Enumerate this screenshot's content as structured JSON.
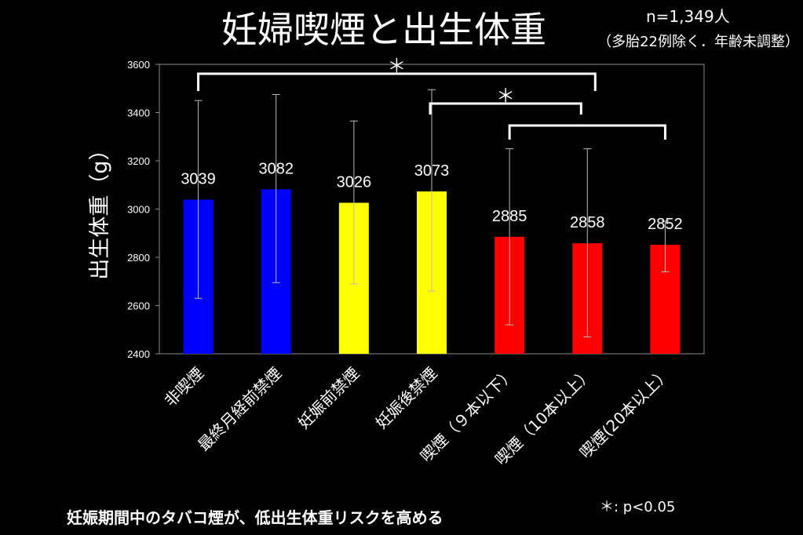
{
  "slide": {
    "title": "妊婦喫煙と出生体重",
    "sample_size": "n=1,349人",
    "note": "（多胎22例除く．年齢未調整）",
    "footer": "妊娠期間中のタバコ煙が、低出生体重リスクを高める",
    "significance_note": "＊: p<0.05"
  },
  "chart_data": {
    "type": "bar",
    "categories": [
      "非喫煙",
      "最終月経前禁煙",
      "妊娠前禁煙",
      "妊娠後禁煙",
      "喫煙（９本以下）",
      "喫煙（10本以上）",
      "喫煙(20本以上）"
    ],
    "values": [
      3039,
      3082,
      3026,
      3073,
      2885,
      2858,
      2852
    ],
    "error_low": [
      2630,
      2695,
      2690,
      2660,
      2520,
      2470,
      2740
    ],
    "error_high": [
      3450,
      3475,
      3365,
      3495,
      3250,
      3250,
      2950
    ],
    "bar_colors": [
      "#0000ff",
      "#0000ff",
      "#ffff00",
      "#ffff00",
      "#ff0000",
      "#ff0000",
      "#ff0000"
    ],
    "ylabel": "出生体重（g）",
    "ylim": [
      2400,
      3600
    ],
    "yticks": [
      2400,
      2600,
      2800,
      3000,
      3200,
      3400,
      3600
    ],
    "grid": false,
    "significance": [
      {
        "from": 0,
        "to": 5,
        "label": "＊"
      },
      {
        "from": 3,
        "to": 5,
        "label": "＊"
      },
      {
        "from": 4,
        "to": 6,
        "label": ""
      }
    ]
  }
}
